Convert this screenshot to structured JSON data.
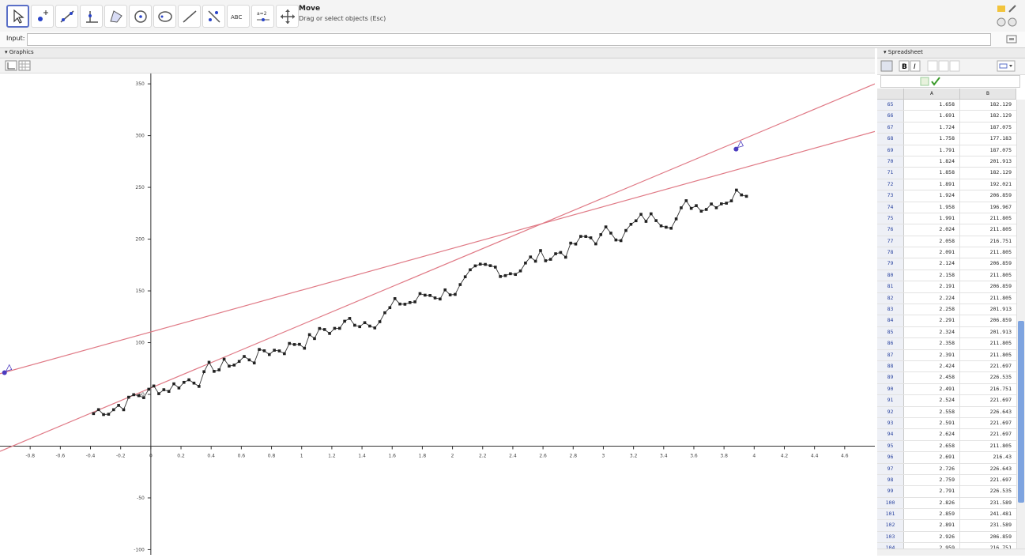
{
  "toolbar": {
    "tools": [
      {
        "name": "move-tool",
        "icon": "arrow-pointer-icon"
      },
      {
        "name": "point-tool",
        "icon": "point-icon"
      },
      {
        "name": "line-tool",
        "icon": "line-icon"
      },
      {
        "name": "perpendicular-tool",
        "icon": "perpendicular-icon"
      },
      {
        "name": "polygon-tool",
        "icon": "polygon-icon"
      },
      {
        "name": "circle-tool",
        "icon": "circle-icon"
      },
      {
        "name": "conic-tool",
        "icon": "conic-icon"
      },
      {
        "name": "angle-tool",
        "icon": "angle-icon"
      },
      {
        "name": "reflect-tool",
        "icon": "reflect-icon"
      },
      {
        "name": "text-tool",
        "icon": "abc-icon",
        "label": "ABC"
      },
      {
        "name": "slider-tool",
        "icon": "slider-icon",
        "label": "a=2"
      },
      {
        "name": "move-graphics-tool",
        "icon": "move-view-icon"
      }
    ],
    "active_title": "Move",
    "active_help": "Drag or select objects (Esc)"
  },
  "input_bar": {
    "label": "Input:",
    "value": ""
  },
  "graphics": {
    "title": "Graphics"
  },
  "spreadsheet": {
    "title": "Spreadsheet",
    "col_a": "A",
    "col_b": "B",
    "rows": [
      [
        65,
        "1.658",
        "182.129"
      ],
      [
        66,
        "1.691",
        "182.129"
      ],
      [
        67,
        "1.724",
        "187.075"
      ],
      [
        68,
        "1.758",
        "177.183"
      ],
      [
        69,
        "1.791",
        "187.075"
      ],
      [
        70,
        "1.824",
        "201.913"
      ],
      [
        71,
        "1.858",
        "182.129"
      ],
      [
        72,
        "1.891",
        "192.021"
      ],
      [
        73,
        "1.924",
        "206.859"
      ],
      [
        74,
        "1.958",
        "196.967"
      ],
      [
        75,
        "1.991",
        "211.805"
      ],
      [
        76,
        "2.024",
        "211.805"
      ],
      [
        77,
        "2.058",
        "216.751"
      ],
      [
        78,
        "2.091",
        "211.805"
      ],
      [
        79,
        "2.124",
        "206.859"
      ],
      [
        80,
        "2.158",
        "211.805"
      ],
      [
        81,
        "2.191",
        "206.859"
      ],
      [
        82,
        "2.224",
        "211.805"
      ],
      [
        83,
        "2.258",
        "201.913"
      ],
      [
        84,
        "2.291",
        "206.859"
      ],
      [
        85,
        "2.324",
        "201.913"
      ],
      [
        86,
        "2.358",
        "211.805"
      ],
      [
        87,
        "2.391",
        "211.805"
      ],
      [
        88,
        "2.424",
        "221.697"
      ],
      [
        89,
        "2.458",
        "226.535"
      ],
      [
        90,
        "2.491",
        "216.751"
      ],
      [
        91,
        "2.524",
        "221.697"
      ],
      [
        92,
        "2.558",
        "226.643"
      ],
      [
        93,
        "2.591",
        "221.697"
      ],
      [
        94,
        "2.624",
        "221.697"
      ],
      [
        95,
        "2.658",
        "211.805"
      ],
      [
        96,
        "2.691",
        "216.43"
      ],
      [
        97,
        "2.726",
        "226.643"
      ],
      [
        98,
        "2.759",
        "221.697"
      ],
      [
        99,
        "2.791",
        "226.535"
      ],
      [
        100,
        "2.826",
        "231.589"
      ],
      [
        101,
        "2.859",
        "241.481"
      ],
      [
        102,
        "2.891",
        "231.589"
      ],
      [
        103,
        "2.926",
        "206.859"
      ],
      [
        104,
        "2.959",
        "216.751"
      ]
    ]
  },
  "axes": {
    "x_ticks": [
      "-0.8",
      "-0.6",
      "-0.4",
      "-0.2",
      "0",
      "0.2",
      "0.4",
      "0.6",
      "0.8",
      "1",
      "1.2",
      "1.4",
      "1.6",
      "1.8",
      "2",
      "2.2",
      "2.4",
      "2.6",
      "2.8",
      "3",
      "3.2",
      "3.4",
      "3.6",
      "3.8",
      "4",
      "4.2",
      "4.4",
      "4.6"
    ],
    "y_ticks": [
      "350",
      "300",
      "250",
      "200",
      "150",
      "100",
      "50",
      "-50",
      "-100"
    ],
    "x_range": [
      -1,
      4.8
    ],
    "y_range": [
      -105,
      360
    ]
  },
  "colors": {
    "line": "#e07a86",
    "point": "#222222",
    "slider": "#4b3bbf",
    "accent": "#5a6fc7"
  }
}
